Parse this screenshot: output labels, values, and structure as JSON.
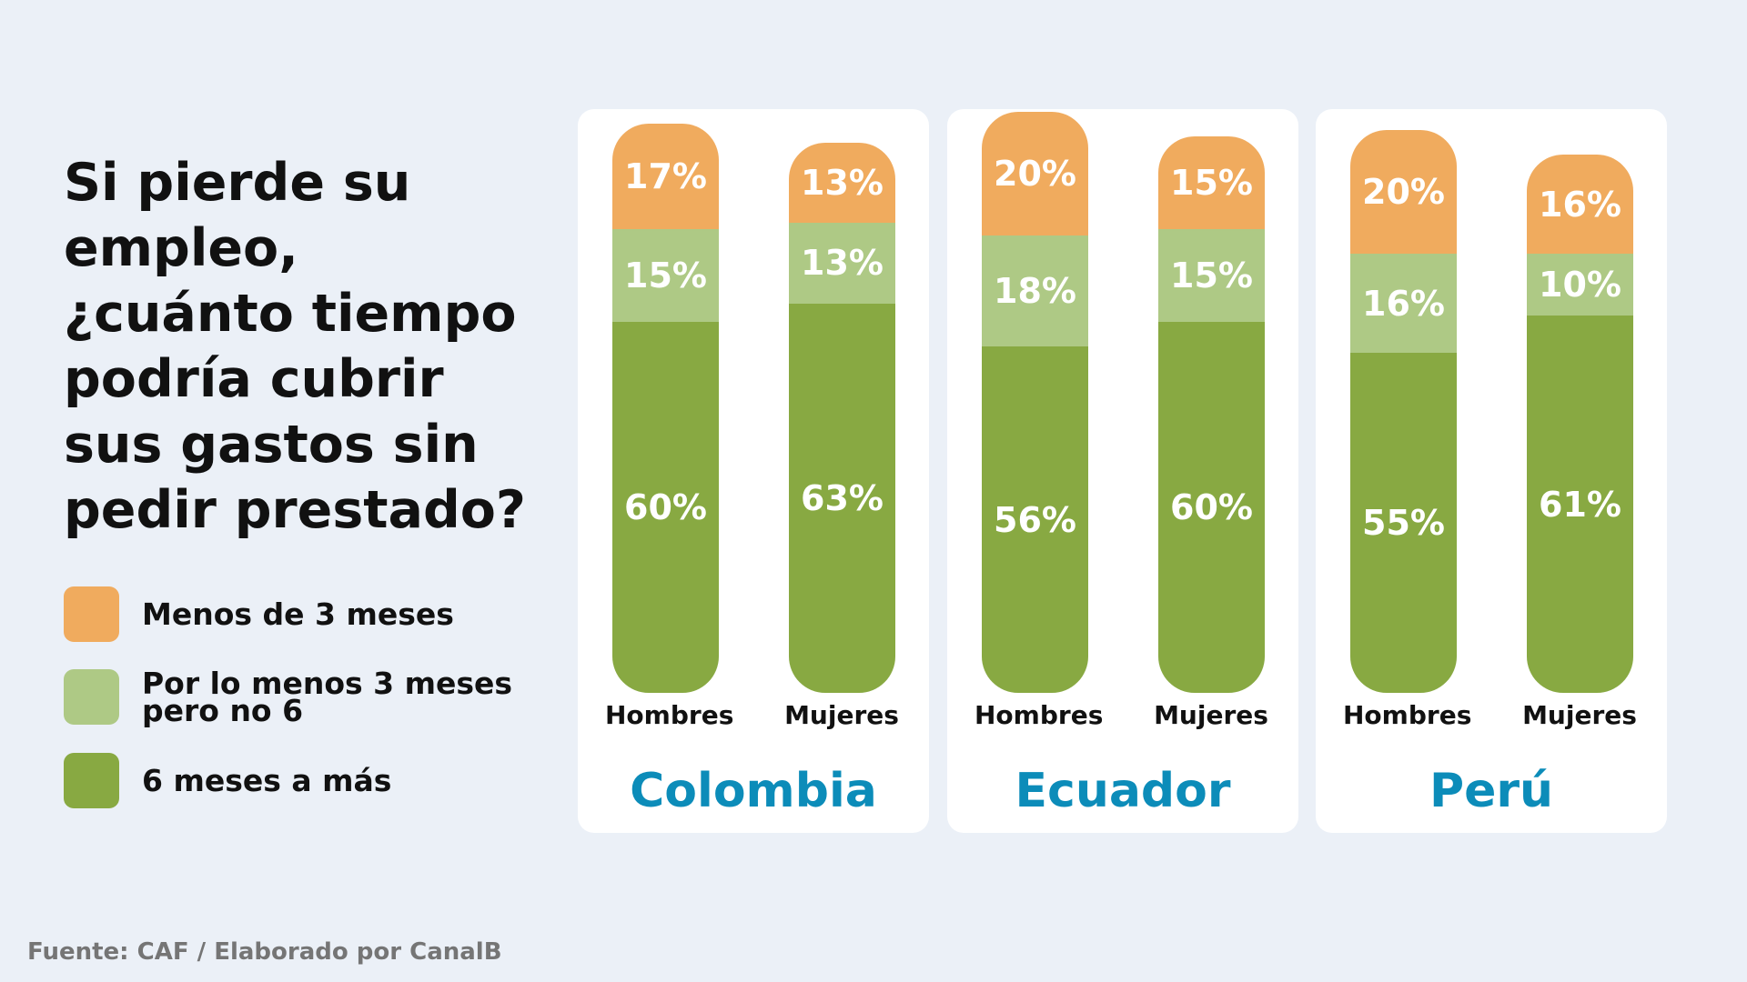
{
  "question": "Si pierde su empleo, ¿cuánto tiempo podría cubrir sus gastos sin pedir prestado?",
  "source": "Fuente: CAF / Elaborado por CanalB",
  "colors": {
    "menos_3": "#f0ab5e",
    "entre_3_6": "#aec985",
    "seis_mas": "#88a942",
    "country": "#0c8cb9"
  },
  "legend": [
    {
      "label": "Menos de 3 meses",
      "color": "#f0ab5e"
    },
    {
      "label": "Por lo menos 3 meses pero no 6",
      "color": "#aec985"
    },
    {
      "label": "6 meses a más",
      "color": "#88a942"
    }
  ],
  "chart_data": {
    "type": "bar",
    "stacked": true,
    "series": [
      {
        "name": "Menos de 3 meses"
      },
      {
        "name": "Por lo menos 3 meses pero no 6"
      },
      {
        "name": "6 meses a más"
      }
    ],
    "groups": [
      {
        "country": "Colombia",
        "bars": [
          {
            "label": "Hombres",
            "values": [
              17,
              15,
              60
            ],
            "labels": [
              "17%",
              "15%",
              "60%"
            ]
          },
          {
            "label": "Mujeres",
            "values": [
              13,
              13,
              63
            ],
            "labels": [
              "13%",
              "13%",
              "63%"
            ]
          }
        ]
      },
      {
        "country": "Ecuador",
        "bars": [
          {
            "label": "Hombres",
            "values": [
              20,
              18,
              56
            ],
            "labels": [
              "20%",
              "18%",
              "56%"
            ]
          },
          {
            "label": "Mujeres",
            "values": [
              15,
              15,
              60
            ],
            "labels": [
              "15%",
              "15%",
              "60%"
            ]
          }
        ]
      },
      {
        "country": "Perú",
        "bars": [
          {
            "label": "Hombres",
            "values": [
              20,
              16,
              55
            ],
            "labels": [
              "20%",
              "16%",
              "55%"
            ]
          },
          {
            "label": "Mujeres",
            "values": [
              16,
              10,
              61
            ],
            "labels": [
              "16%",
              "10%",
              "61%"
            ]
          }
        ]
      }
    ]
  }
}
